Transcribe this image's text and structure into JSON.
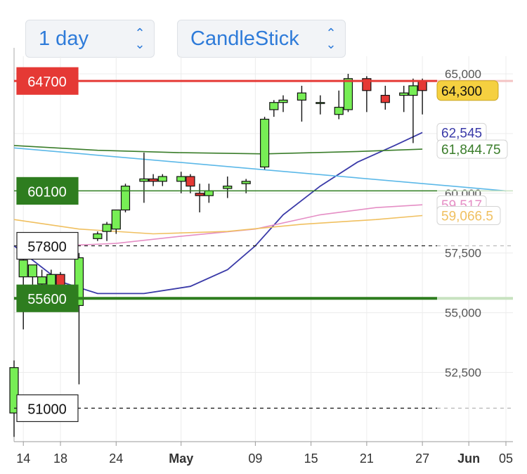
{
  "controls": {
    "interval": "1 day",
    "chart_type": "CandleStick"
  },
  "colors": {
    "up": "#77ee55",
    "down": "#e53935",
    "red_level": "#e53935",
    "green_level": "#2e7d1f",
    "ma_blue": "#3a3aa8",
    "ma_darkgreen": "#3a7d2a",
    "ma_lightblue": "#5bb8e8",
    "ma_pink": "#e58ec5",
    "ma_orange": "#f0c060",
    "last_price_bg": "#f5d040"
  },
  "chart_data": {
    "type": "candlestick",
    "title": "",
    "xlabel": "",
    "ylabel": "",
    "ylim": [
      49600,
      65500
    ],
    "x_range": [
      "2024-04-13",
      "2024-06-05"
    ],
    "y_ticks": [
      "65,000",
      "62,500",
      "60,000",
      "57,500",
      "55,000",
      "52,500"
    ],
    "x_ticks": [
      {
        "date": "2024-04-14",
        "label": "14",
        "bold": false
      },
      {
        "date": "2024-04-18",
        "label": "18",
        "bold": false
      },
      {
        "date": "2024-04-24",
        "label": "24",
        "bold": false
      },
      {
        "date": "2024-05-01",
        "label": "May",
        "bold": true
      },
      {
        "date": "2024-05-09",
        "label": "09",
        "bold": false
      },
      {
        "date": "2024-05-15",
        "label": "15",
        "bold": false
      },
      {
        "date": "2024-05-21",
        "label": "21",
        "bold": false
      },
      {
        "date": "2024-05-27",
        "label": "27",
        "bold": false
      },
      {
        "date": "2024-06-01",
        "label": "Jun",
        "bold": true
      },
      {
        "date": "2024-06-05",
        "label": "05",
        "bold": false
      }
    ],
    "candles": [
      {
        "date": "2024-04-13",
        "open": 50800,
        "high": 53000,
        "low": 49800,
        "close": 52700
      },
      {
        "date": "2024-04-14",
        "open": 56500,
        "high": 57300,
        "low": 54300,
        "close": 57200
      },
      {
        "date": "2024-04-15",
        "open": 56500,
        "high": 57000,
        "low": 55800,
        "close": 57000
      },
      {
        "date": "2024-04-16",
        "open": 56200,
        "high": 56800,
        "low": 55900,
        "close": 56500
      },
      {
        "date": "2024-04-17",
        "open": 56000,
        "high": 56800,
        "low": 55700,
        "close": 56600
      },
      {
        "date": "2024-04-18",
        "open": 56600,
        "high": 56700,
        "low": 55700,
        "close": 55900
      },
      {
        "date": "2024-04-19",
        "open": 56000,
        "high": 56100,
        "low": 55100,
        "close": 55500
      },
      {
        "date": "2024-04-20",
        "open": 55300,
        "high": 57500,
        "low": 52000,
        "close": 57300
      },
      {
        "date": "2024-04-22",
        "open": 58100,
        "high": 58400,
        "low": 58000,
        "close": 58300
      },
      {
        "date": "2024-04-23",
        "open": 58400,
        "high": 58800,
        "low": 58000,
        "close": 58700
      },
      {
        "date": "2024-04-24",
        "open": 58500,
        "high": 59300,
        "low": 58300,
        "close": 59300
      },
      {
        "date": "2024-04-25",
        "open": 59300,
        "high": 60400,
        "low": 59200,
        "close": 60300
      },
      {
        "date": "2024-04-27",
        "open": 60500,
        "high": 61700,
        "low": 59600,
        "close": 60600
      },
      {
        "date": "2024-04-28",
        "open": 60600,
        "high": 60800,
        "low": 60300,
        "close": 60500
      },
      {
        "date": "2024-04-29",
        "open": 60500,
        "high": 60800,
        "low": 60300,
        "close": 60700
      },
      {
        "date": "2024-05-01",
        "open": 60500,
        "high": 60900,
        "low": 60000,
        "close": 60700
      },
      {
        "date": "2024-05-02",
        "open": 60700,
        "high": 60800,
        "low": 60000,
        "close": 60300
      },
      {
        "date": "2024-05-03",
        "open": 60000,
        "high": 60400,
        "low": 59200,
        "close": 59900
      },
      {
        "date": "2024-05-04",
        "open": 59900,
        "high": 60400,
        "low": 59600,
        "close": 60100
      },
      {
        "date": "2024-05-06",
        "open": 60200,
        "high": 60700,
        "low": 59800,
        "close": 60300
      },
      {
        "date": "2024-05-08",
        "open": 60400,
        "high": 60600,
        "low": 60000,
        "close": 60500
      },
      {
        "date": "2024-05-10",
        "open": 61100,
        "high": 63200,
        "low": 61000,
        "close": 63100
      },
      {
        "date": "2024-05-11",
        "open": 63500,
        "high": 63900,
        "low": 63200,
        "close": 63800
      },
      {
        "date": "2024-05-12",
        "open": 63800,
        "high": 64100,
        "low": 63400,
        "close": 63900
      },
      {
        "date": "2024-05-14",
        "open": 63900,
        "high": 64500,
        "low": 63000,
        "close": 64200
      },
      {
        "date": "2024-05-16",
        "open": 63800,
        "high": 64100,
        "low": 63300,
        "close": 63800
      },
      {
        "date": "2024-05-18",
        "open": 63300,
        "high": 64300,
        "low": 63100,
        "close": 63600
      },
      {
        "date": "2024-05-19",
        "open": 63500,
        "high": 65000,
        "low": 63400,
        "close": 64800
      },
      {
        "date": "2024-05-21",
        "open": 64800,
        "high": 64900,
        "low": 63400,
        "close": 64300
      },
      {
        "date": "2024-05-23",
        "open": 64100,
        "high": 64500,
        "low": 63500,
        "close": 63800
      },
      {
        "date": "2024-05-25",
        "open": 64100,
        "high": 64500,
        "low": 63400,
        "close": 64200
      },
      {
        "date": "2024-05-26",
        "open": 64100,
        "high": 64800,
        "low": 62100,
        "close": 64500
      },
      {
        "date": "2024-05-27",
        "open": 64700,
        "high": 64800,
        "low": 63300,
        "close": 64300
      }
    ],
    "moving_averages": [
      {
        "color": "ma_blue",
        "points": [
          [
            "2024-04-13",
            57800
          ],
          [
            "2024-04-18",
            56300
          ],
          [
            "2024-04-22",
            55800
          ],
          [
            "2024-04-27",
            55800
          ],
          [
            "2024-05-02",
            56100
          ],
          [
            "2024-05-06",
            56800
          ],
          [
            "2024-05-09",
            57800
          ],
          [
            "2024-05-12",
            59100
          ],
          [
            "2024-05-16",
            60300
          ],
          [
            "2024-05-20",
            61300
          ],
          [
            "2024-05-24",
            62000
          ],
          [
            "2024-05-27",
            62545
          ]
        ]
      },
      {
        "color": "ma_darkgreen",
        "points": [
          [
            "2024-04-13",
            62000
          ],
          [
            "2024-04-22",
            61800
          ],
          [
            "2024-05-01",
            61700
          ],
          [
            "2024-05-10",
            61650
          ],
          [
            "2024-05-20",
            61750
          ],
          [
            "2024-05-27",
            61844.75
          ]
        ]
      },
      {
        "color": "ma_lightblue",
        "points": [
          [
            "2024-04-13",
            61900
          ],
          [
            "2024-06-05",
            60100
          ]
        ]
      },
      {
        "color": "ma_pink",
        "points": [
          [
            "2024-04-18",
            57800
          ],
          [
            "2024-04-24",
            57900
          ],
          [
            "2024-05-01",
            58200
          ],
          [
            "2024-05-09",
            58500
          ],
          [
            "2024-05-16",
            59100
          ],
          [
            "2024-05-22",
            59400
          ],
          [
            "2024-05-27",
            59517
          ]
        ]
      },
      {
        "color": "ma_orange",
        "points": [
          [
            "2024-04-13",
            58900
          ],
          [
            "2024-04-20",
            58500
          ],
          [
            "2024-04-28",
            58300
          ],
          [
            "2024-05-06",
            58400
          ],
          [
            "2024-05-14",
            58700
          ],
          [
            "2024-05-22",
            58900
          ],
          [
            "2024-05-27",
            59066.5
          ]
        ]
      }
    ],
    "price_levels": [
      {
        "label": "64700",
        "value": 64700,
        "style": "solid-red"
      },
      {
        "label": "60100",
        "value": 60100,
        "style": "solid-green-thin"
      },
      {
        "label": "57800",
        "value": 57800,
        "style": "dashed"
      },
      {
        "label": "55600",
        "value": 55600,
        "style": "solid-green-thick"
      },
      {
        "label": "51000",
        "value": 51000,
        "style": "dashed"
      }
    ],
    "right_labels": [
      {
        "text": "64,300",
        "value": 64300,
        "style": "last-price"
      },
      {
        "text": "62,545",
        "value": 62545,
        "color": "ma_blue"
      },
      {
        "text": "61,844.75",
        "value": 61844.75,
        "color": "ma_darkgreen"
      },
      {
        "text": "59,517",
        "value": 59517,
        "color": "ma_pink"
      },
      {
        "text": "59,066.5",
        "value": 59066.5,
        "color": "ma_orange"
      }
    ]
  }
}
